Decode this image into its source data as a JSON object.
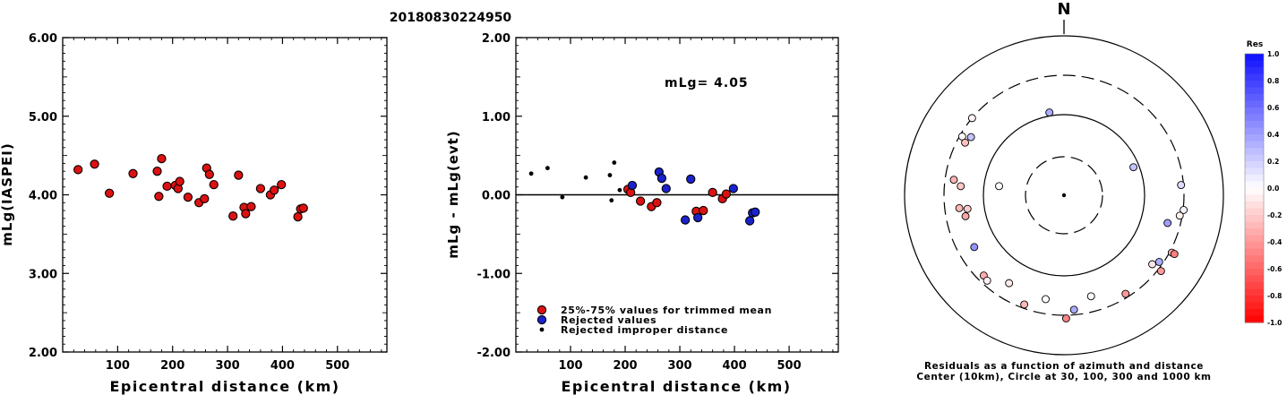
{
  "title": "20180830224950",
  "colors": {
    "red": "#dd1111",
    "blue": "#1a22cc",
    "black": "#000000"
  },
  "chart_data": [
    {
      "type": "scatter",
      "xlabel": "Epicentral distance (km)",
      "ylabel": "mLg(IASPEI)",
      "xlim": [
        0,
        590
      ],
      "ylim": [
        2.0,
        6.0
      ],
      "x_ticks": [
        "100",
        "200",
        "300",
        "400",
        "500"
      ],
      "y_ticks": [
        "2.00",
        "3.00",
        "4.00",
        "5.00",
        "6.00"
      ],
      "series": [
        {
          "color": "red",
          "points": [
            [
              28,
              4.32
            ],
            [
              58,
              4.39
            ],
            [
              85,
              4.02
            ],
            [
              128,
              4.27
            ],
            [
              172,
              4.3
            ],
            [
              175,
              3.98
            ],
            [
              180,
              4.46
            ],
            [
              190,
              4.11
            ],
            [
              205,
              4.12
            ],
            [
              210,
              4.08
            ],
            [
              213,
              4.17
            ],
            [
              228,
              3.97
            ],
            [
              248,
              3.9
            ],
            [
              258,
              3.95
            ],
            [
              262,
              4.34
            ],
            [
              267,
              4.26
            ],
            [
              275,
              4.13
            ],
            [
              310,
              3.73
            ],
            [
              320,
              4.25
            ],
            [
              330,
              3.84
            ],
            [
              333,
              3.76
            ],
            [
              343,
              3.85
            ],
            [
              360,
              4.08
            ],
            [
              378,
              4.0
            ],
            [
              385,
              4.06
            ],
            [
              398,
              4.13
            ],
            [
              428,
              3.72
            ],
            [
              433,
              3.82
            ],
            [
              438,
              3.83
            ]
          ]
        }
      ]
    },
    {
      "type": "scatter",
      "xlabel": "Epicentral distance (km)",
      "ylabel": "mLg - mLg(evt)",
      "annotation": "mLg= 4.05",
      "xlim": [
        0,
        590
      ],
      "ylim": [
        -2.0,
        2.0
      ],
      "x_ticks": [
        "100",
        "200",
        "300",
        "400",
        "500"
      ],
      "y_ticks": [
        "-2.00",
        "-1.00",
        "0.00",
        "1.00",
        "2.00"
      ],
      "reference_line": 0.0,
      "legend": {
        "position": "bottom-left",
        "items": [
          {
            "label": "25%-75% values for trimmed mean",
            "color": "red",
            "marker": "circle"
          },
          {
            "label": "Rejected values",
            "color": "blue",
            "marker": "circle"
          },
          {
            "label": "Rejected improper distance",
            "color": "black",
            "marker": "dot"
          }
        ]
      },
      "series": [
        {
          "color": "black",
          "marker": "dot",
          "points": [
            [
              28,
              0.27
            ],
            [
              58,
              0.34
            ],
            [
              85,
              -0.03
            ],
            [
              128,
              0.22
            ],
            [
              172,
              0.25
            ],
            [
              175,
              -0.07
            ],
            [
              180,
              0.41
            ],
            [
              190,
              0.06
            ]
          ]
        },
        {
          "color": "red",
          "marker": "circle",
          "points": [
            [
              205,
              0.07
            ],
            [
              210,
              0.03
            ],
            [
              228,
              -0.08
            ],
            [
              248,
              -0.15
            ],
            [
              258,
              -0.1
            ],
            [
              330,
              -0.21
            ],
            [
              343,
              -0.2
            ],
            [
              360,
              0.03
            ],
            [
              378,
              -0.05
            ],
            [
              385,
              0.01
            ]
          ]
        },
        {
          "color": "blue",
          "marker": "circle",
          "points": [
            [
              213,
              0.12
            ],
            [
              262,
              0.29
            ],
            [
              267,
              0.21
            ],
            [
              275,
              0.08
            ],
            [
              310,
              -0.32
            ],
            [
              320,
              0.2
            ],
            [
              333,
              -0.29
            ],
            [
              398,
              0.08
            ],
            [
              428,
              -0.33
            ],
            [
              433,
              -0.23
            ],
            [
              438,
              -0.22
            ]
          ]
        }
      ]
    },
    {
      "type": "polar",
      "north_label": "N",
      "caption_line1": "Residuals as a function of azimuth and distance",
      "caption_line2": "Center (10km), Circle at 30, 100, 300 and 1000 km",
      "rings_km": [
        30,
        100,
        300,
        1000
      ],
      "ring_styles": [
        "dashed",
        "solid",
        "dashed",
        "solid"
      ],
      "colorbar": {
        "title": "Res",
        "range": [
          -1.0,
          1.0
        ],
        "tick_labels": [
          "1.0",
          "0.8",
          "0.6",
          "0.4",
          "0.2",
          "0.0",
          "-0.2",
          "-0.4",
          "-0.6",
          "-0.8",
          "-1.0"
        ]
      },
      "points": [
        {
          "azimuth": 350,
          "distance_km": 110,
          "res": 0.35
        },
        {
          "azimuth": 68,
          "distance_km": 85,
          "res": 0.25
        },
        {
          "azimuth": 278,
          "distance_km": 65,
          "res": -0.02
        },
        {
          "azimuth": 310,
          "distance_km": 300,
          "res": -0.05
        },
        {
          "azimuth": 300,
          "distance_km": 280,
          "res": 0.0
        },
        {
          "azimuth": 298,
          "distance_km": 240,
          "res": -0.25
        },
        {
          "azimuth": 302,
          "distance_km": 225,
          "res": 0.25
        },
        {
          "azimuth": 278,
          "distance_km": 235,
          "res": -0.3
        },
        {
          "azimuth": 275,
          "distance_km": 190,
          "res": -0.22
        },
        {
          "azimuth": 263,
          "distance_km": 200,
          "res": -0.28
        },
        {
          "azimuth": 262,
          "distance_km": 160,
          "res": -0.2
        },
        {
          "azimuth": 258,
          "distance_km": 175,
          "res": -0.35
        },
        {
          "azimuth": 240,
          "distance_km": 190,
          "res": 0.45
        },
        {
          "azimuth": 225,
          "distance_km": 250,
          "res": -0.32
        },
        {
          "azimuth": 222,
          "distance_km": 260,
          "res": -0.05
        },
        {
          "azimuth": 212,
          "distance_km": 190,
          "res": -0.08
        },
        {
          "azimuth": 200,
          "distance_km": 270,
          "res": -0.28
        },
        {
          "azimuth": 190,
          "distance_km": 200,
          "res": 0.0
        },
        {
          "azimuth": 175,
          "distance_km": 260,
          "res": 0.35
        },
        {
          "azimuth": 179,
          "distance_km": 330,
          "res": -0.48
        },
        {
          "azimuth": 165,
          "distance_km": 195,
          "res": -0.02
        },
        {
          "azimuth": 148,
          "distance_km": 270,
          "res": -0.4
        },
        {
          "azimuth": 128,
          "distance_km": 240,
          "res": -0.1
        },
        {
          "azimuth": 125,
          "distance_km": 270,
          "res": 0.35
        },
        {
          "azimuth": 118,
          "distance_km": 320,
          "res": -0.3
        },
        {
          "azimuth": 128,
          "distance_km": 330,
          "res": -0.4
        },
        {
          "azimuth": 118,
          "distance_km": 350,
          "res": -0.5
        },
        {
          "azimuth": 100,
          "distance_km": 280,
          "res": -0.05
        },
        {
          "azimuth": 97,
          "distance_km": 305,
          "res": 0.05
        },
        {
          "azimuth": 105,
          "distance_km": 210,
          "res": 0.4
        },
        {
          "azimuth": 85,
          "distance_km": 280,
          "res": 0.15
        }
      ]
    }
  ]
}
